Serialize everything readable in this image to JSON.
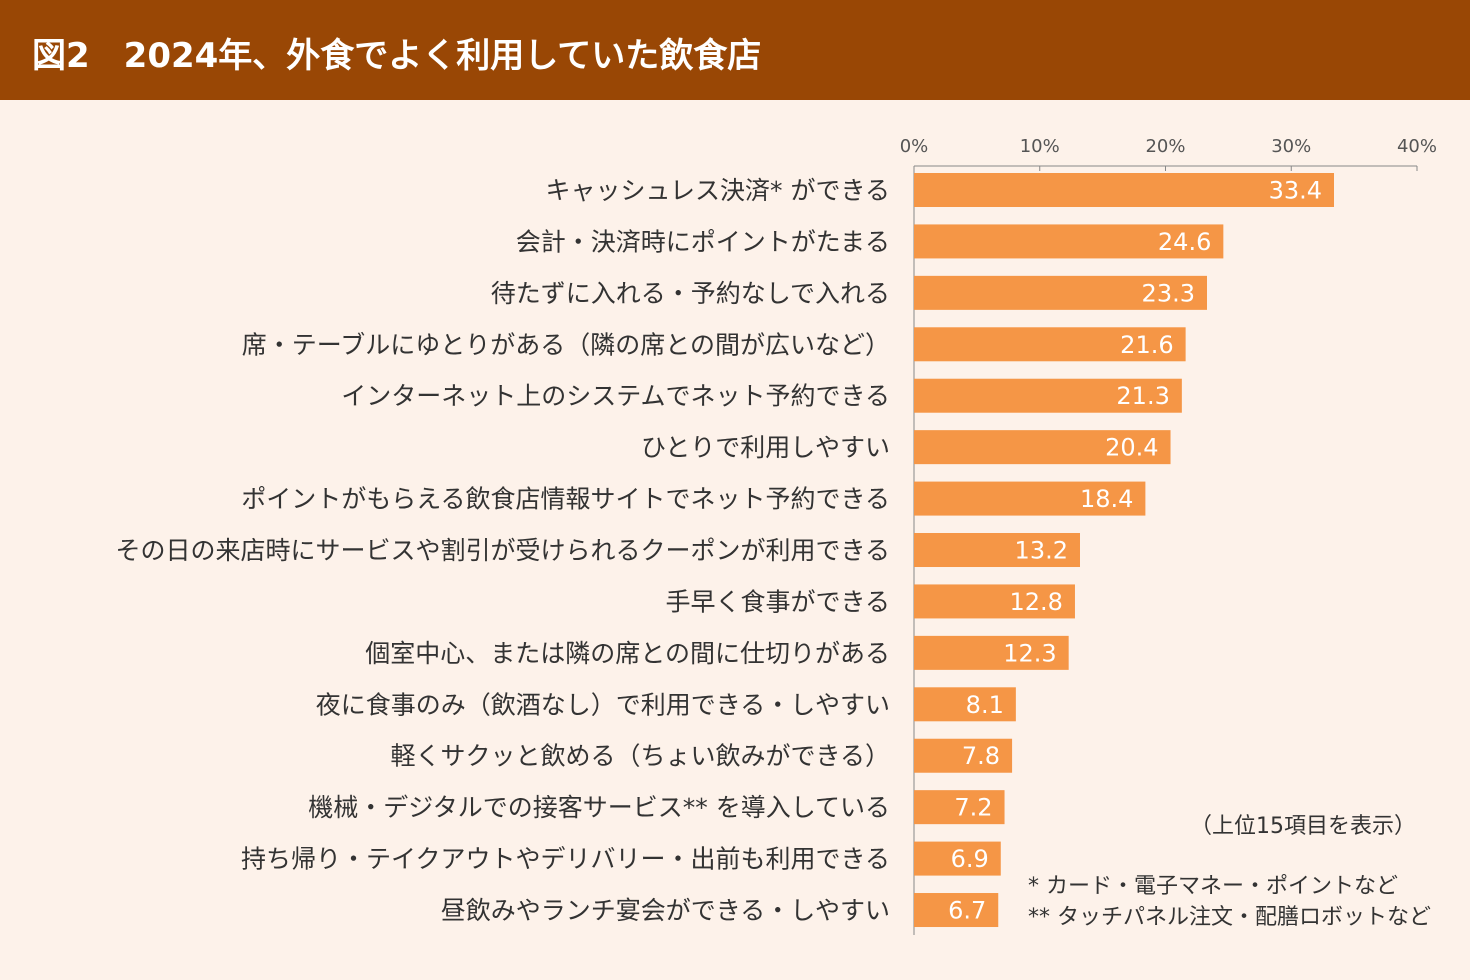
{
  "header": {
    "title": "図2　2024年、外食でよく利用していた飲食店"
  },
  "notes": {
    "top_n": "（上位15項目を表示）",
    "footnote1": "* カード・電子マネー・ポイントなど",
    "footnote2": "** タッチパネル注文・配膳ロボットなど"
  },
  "chart_data": {
    "type": "bar",
    "orientation": "horizontal",
    "title": "2024年、外食でよく利用していた飲食店",
    "xlim": [
      0,
      40
    ],
    "xticks": [
      "0%",
      "10%",
      "20%",
      "30%",
      "40%"
    ],
    "xtick_values": [
      0,
      10,
      20,
      30,
      40
    ],
    "bar_color": "#f59646",
    "categories": [
      "キャッシュレス決済* ができる",
      "会計・決済時にポイントがたまる",
      "待たずに入れる・予約なしで入れる",
      "席・テーブルにゆとりがある（隣の席との間が広いなど）",
      "インターネット上のシステムでネット予約できる",
      "ひとりで利用しやすい",
      "ポイントがもらえる飲食店情報サイトでネット予約できる",
      "その日の来店時にサービスや割引が受けられるクーポンが利用できる",
      "手早く食事ができる",
      "個室中心、または隣の席との間に仕切りがある",
      "夜に食事のみ（飲酒なし）で利用できる・しやすい",
      "軽くサクッと飲める（ちょい飲みができる）",
      "機械・デジタルでの接客サービス** を導入している",
      "持ち帰り・テイクアウトやデリバリー・出前も利用できる",
      "昼飲みやランチ宴会ができる・しやすい"
    ],
    "values": [
      33.4,
      24.6,
      23.3,
      21.6,
      21.3,
      20.4,
      18.4,
      13.2,
      12.8,
      12.3,
      8.1,
      7.8,
      7.2,
      6.9,
      6.7
    ],
    "value_labels": [
      "33.4",
      "24.6",
      "23.3",
      "21.6",
      "21.3",
      "20.4",
      "18.4",
      "13.2",
      "12.8",
      "12.3",
      "8.1",
      "7.8",
      "7.2",
      "6.9",
      "6.7"
    ]
  }
}
